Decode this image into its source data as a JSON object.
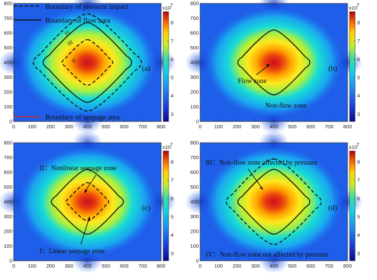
{
  "chart_data": [
    {
      "type": "heatmap",
      "panel_label": "(a)",
      "xlim": [
        0,
        800
      ],
      "ylim": [
        0,
        800
      ],
      "x_ticks": [
        0,
        100,
        200,
        300,
        400,
        500,
        600,
        700,
        800
      ],
      "y_ticks": [
        0,
        100,
        200,
        300,
        400,
        500,
        600,
        700,
        800
      ],
      "colorbar": {
        "ticks": [
          3,
          4,
          5,
          6,
          7,
          8
        ],
        "exponent_label": "x10^7",
        "range": [
          2.6,
          8.6
        ]
      },
      "boundaries": [
        "pressure-impact",
        "flow-area",
        "seepage-area"
      ],
      "zone_numerals": [
        "IV",
        "III",
        "II"
      ],
      "annotations": []
    },
    {
      "type": "heatmap",
      "panel_label": "(b)",
      "xlim": [
        0,
        800
      ],
      "ylim": [
        0,
        800
      ],
      "x_ticks": [
        0,
        100,
        200,
        300,
        400,
        500,
        600,
        700,
        800
      ],
      "y_ticks": [
        0,
        100,
        200,
        300,
        400,
        500,
        600,
        700,
        800
      ],
      "colorbar": {
        "ticks": [
          3,
          4,
          5,
          6,
          7,
          8
        ],
        "exponent_label": "x10^7",
        "range": [
          2.6,
          8.6
        ]
      },
      "boundaries": [
        "flow-area"
      ],
      "annotations": [
        "Flow zone",
        "Non-flow zone"
      ]
    },
    {
      "type": "heatmap",
      "panel_label": "(c)",
      "xlim": [
        0,
        800
      ],
      "ylim": [
        0,
        800
      ],
      "x_ticks": [
        0,
        100,
        200,
        300,
        400,
        500,
        600,
        700,
        800
      ],
      "y_ticks": [
        0,
        100,
        200,
        300,
        400,
        500,
        600,
        700,
        800
      ],
      "colorbar": {
        "ticks": [
          3,
          4,
          5,
          6,
          7,
          8
        ],
        "exponent_label": "x10^7",
        "range": [
          2.6,
          8.6
        ]
      },
      "boundaries": [
        "flow-area",
        "seepage-area"
      ],
      "annotations": [
        "II：Nonlinear seepage zone",
        "I：Linear seepage zone"
      ]
    },
    {
      "type": "heatmap",
      "panel_label": "(d)",
      "xlim": [
        0,
        800
      ],
      "ylim": [
        0,
        800
      ],
      "x_ticks": [
        0,
        100,
        200,
        300,
        400,
        500,
        600,
        700,
        800
      ],
      "y_ticks": [
        0,
        100,
        200,
        300,
        400,
        500,
        600,
        700,
        800
      ],
      "colorbar": {
        "ticks": [
          3,
          4,
          5,
          6,
          7,
          8
        ],
        "exponent_label": "x10^7",
        "range": [
          2.6,
          8.6
        ]
      },
      "boundaries": [
        "flow-area",
        "pressure-impact"
      ],
      "annotations": [
        "III：Non-flow zone affected by pressure",
        "IV：Non-flow zone not affected by pressure"
      ]
    }
  ],
  "legend": {
    "pressure": "Boundary of pressure impact",
    "flow": "Boundary of flow area",
    "seepage": "Boundary of seepage area"
  },
  "colors": {
    "low": "#1a1aa8",
    "field_blue": "#1e5ee8",
    "mid": "#00c8e0",
    "high": "#ffe000",
    "peak": "#d01818",
    "boundary": "#111111"
  }
}
